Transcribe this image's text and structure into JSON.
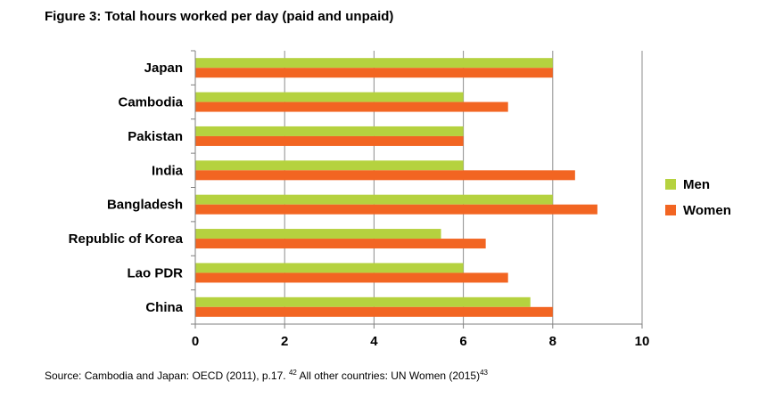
{
  "figure": {
    "title": "Figure 3: Total hours worked per day (paid and unpaid)",
    "source_main": "Source: Cambodia and Japan: OECD (2011), p.17.",
    "source_ref1": "42",
    "source_mid": "All other countries: UN Women (2015)",
    "source_ref2": "43"
  },
  "chart_data": {
    "type": "bar",
    "orientation": "horizontal",
    "categories": [
      "Japan",
      "Cambodia",
      "Pakistan",
      "India",
      "Bangladesh",
      "Republic of Korea",
      "Lao PDR",
      "China"
    ],
    "series": [
      {
        "name": "Men",
        "color": "#b5d23f",
        "values": [
          8,
          6,
          6,
          6,
          8,
          5.5,
          6,
          7.5
        ]
      },
      {
        "name": "Women",
        "color": "#f26522",
        "values": [
          8,
          7,
          6,
          8.5,
          9,
          6.5,
          7,
          8
        ]
      }
    ],
    "xlim": [
      0,
      10
    ],
    "xticks": [
      "0",
      "2",
      "4",
      "6",
      "8",
      "10"
    ],
    "grid": true,
    "legend": "right"
  }
}
